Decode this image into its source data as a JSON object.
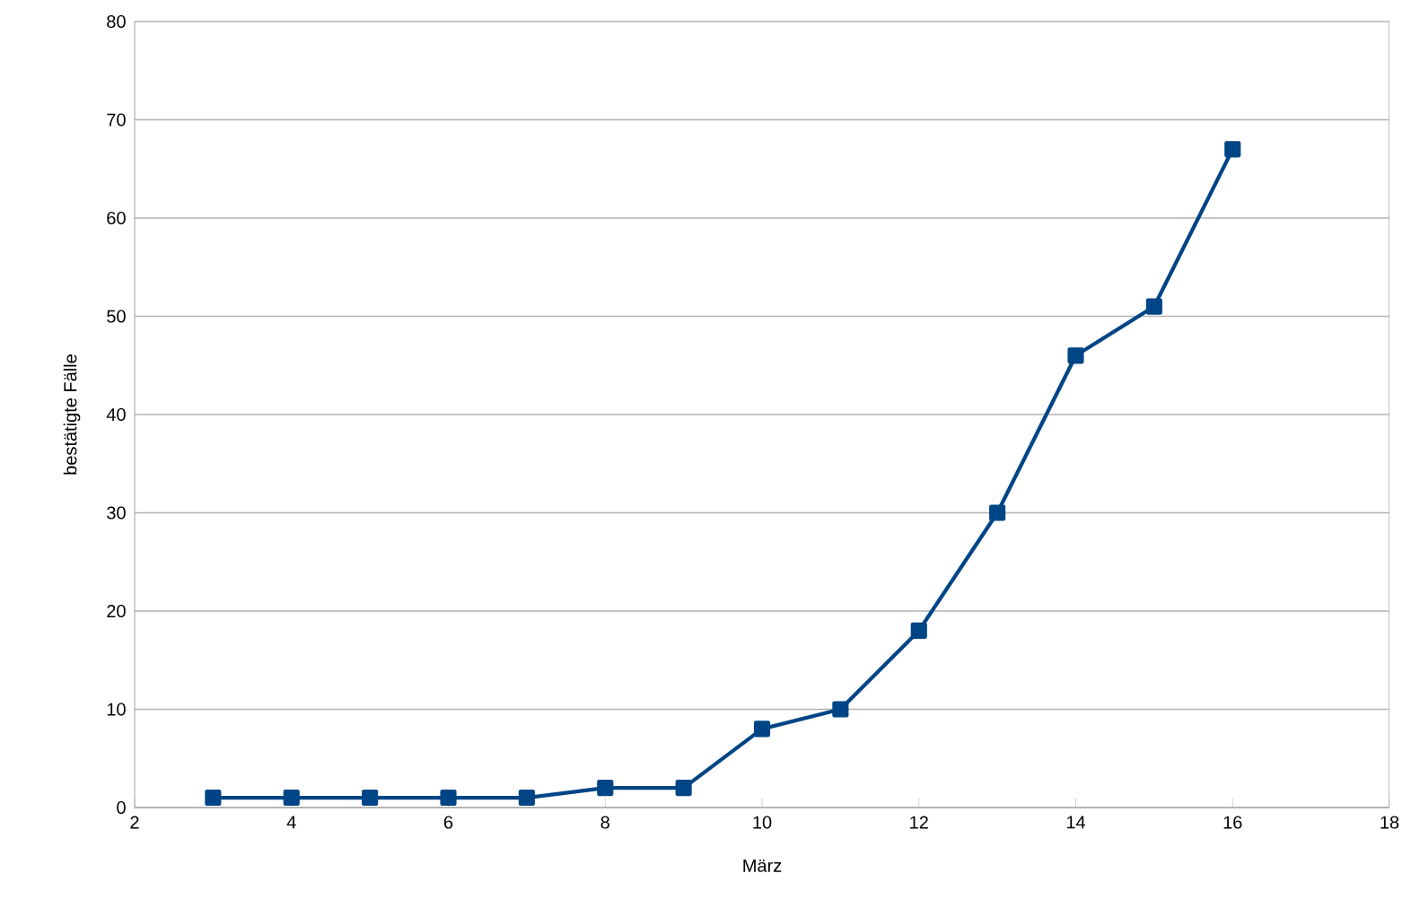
{
  "chart_data": {
    "type": "line",
    "xlabel": "März",
    "ylabel": "bestätigte Fälle",
    "x": [
      3,
      4,
      5,
      6,
      7,
      8,
      9,
      10,
      11,
      12,
      13,
      14,
      15,
      16
    ],
    "series": [
      {
        "color": "#004586",
        "values": [
          1,
          1,
          1,
          1,
          1,
          2,
          2,
          8,
          10,
          18,
          30,
          46,
          51,
          67
        ]
      }
    ],
    "xlim": [
      2,
      18
    ],
    "xticks": [
      2,
      4,
      6,
      8,
      10,
      12,
      14,
      16,
      18
    ],
    "ylim": [
      0,
      80
    ],
    "yticks": [
      0,
      10,
      20,
      30,
      40,
      50,
      60,
      70,
      80
    ],
    "grid": "y",
    "marker": "square",
    "line_style": "solid"
  }
}
